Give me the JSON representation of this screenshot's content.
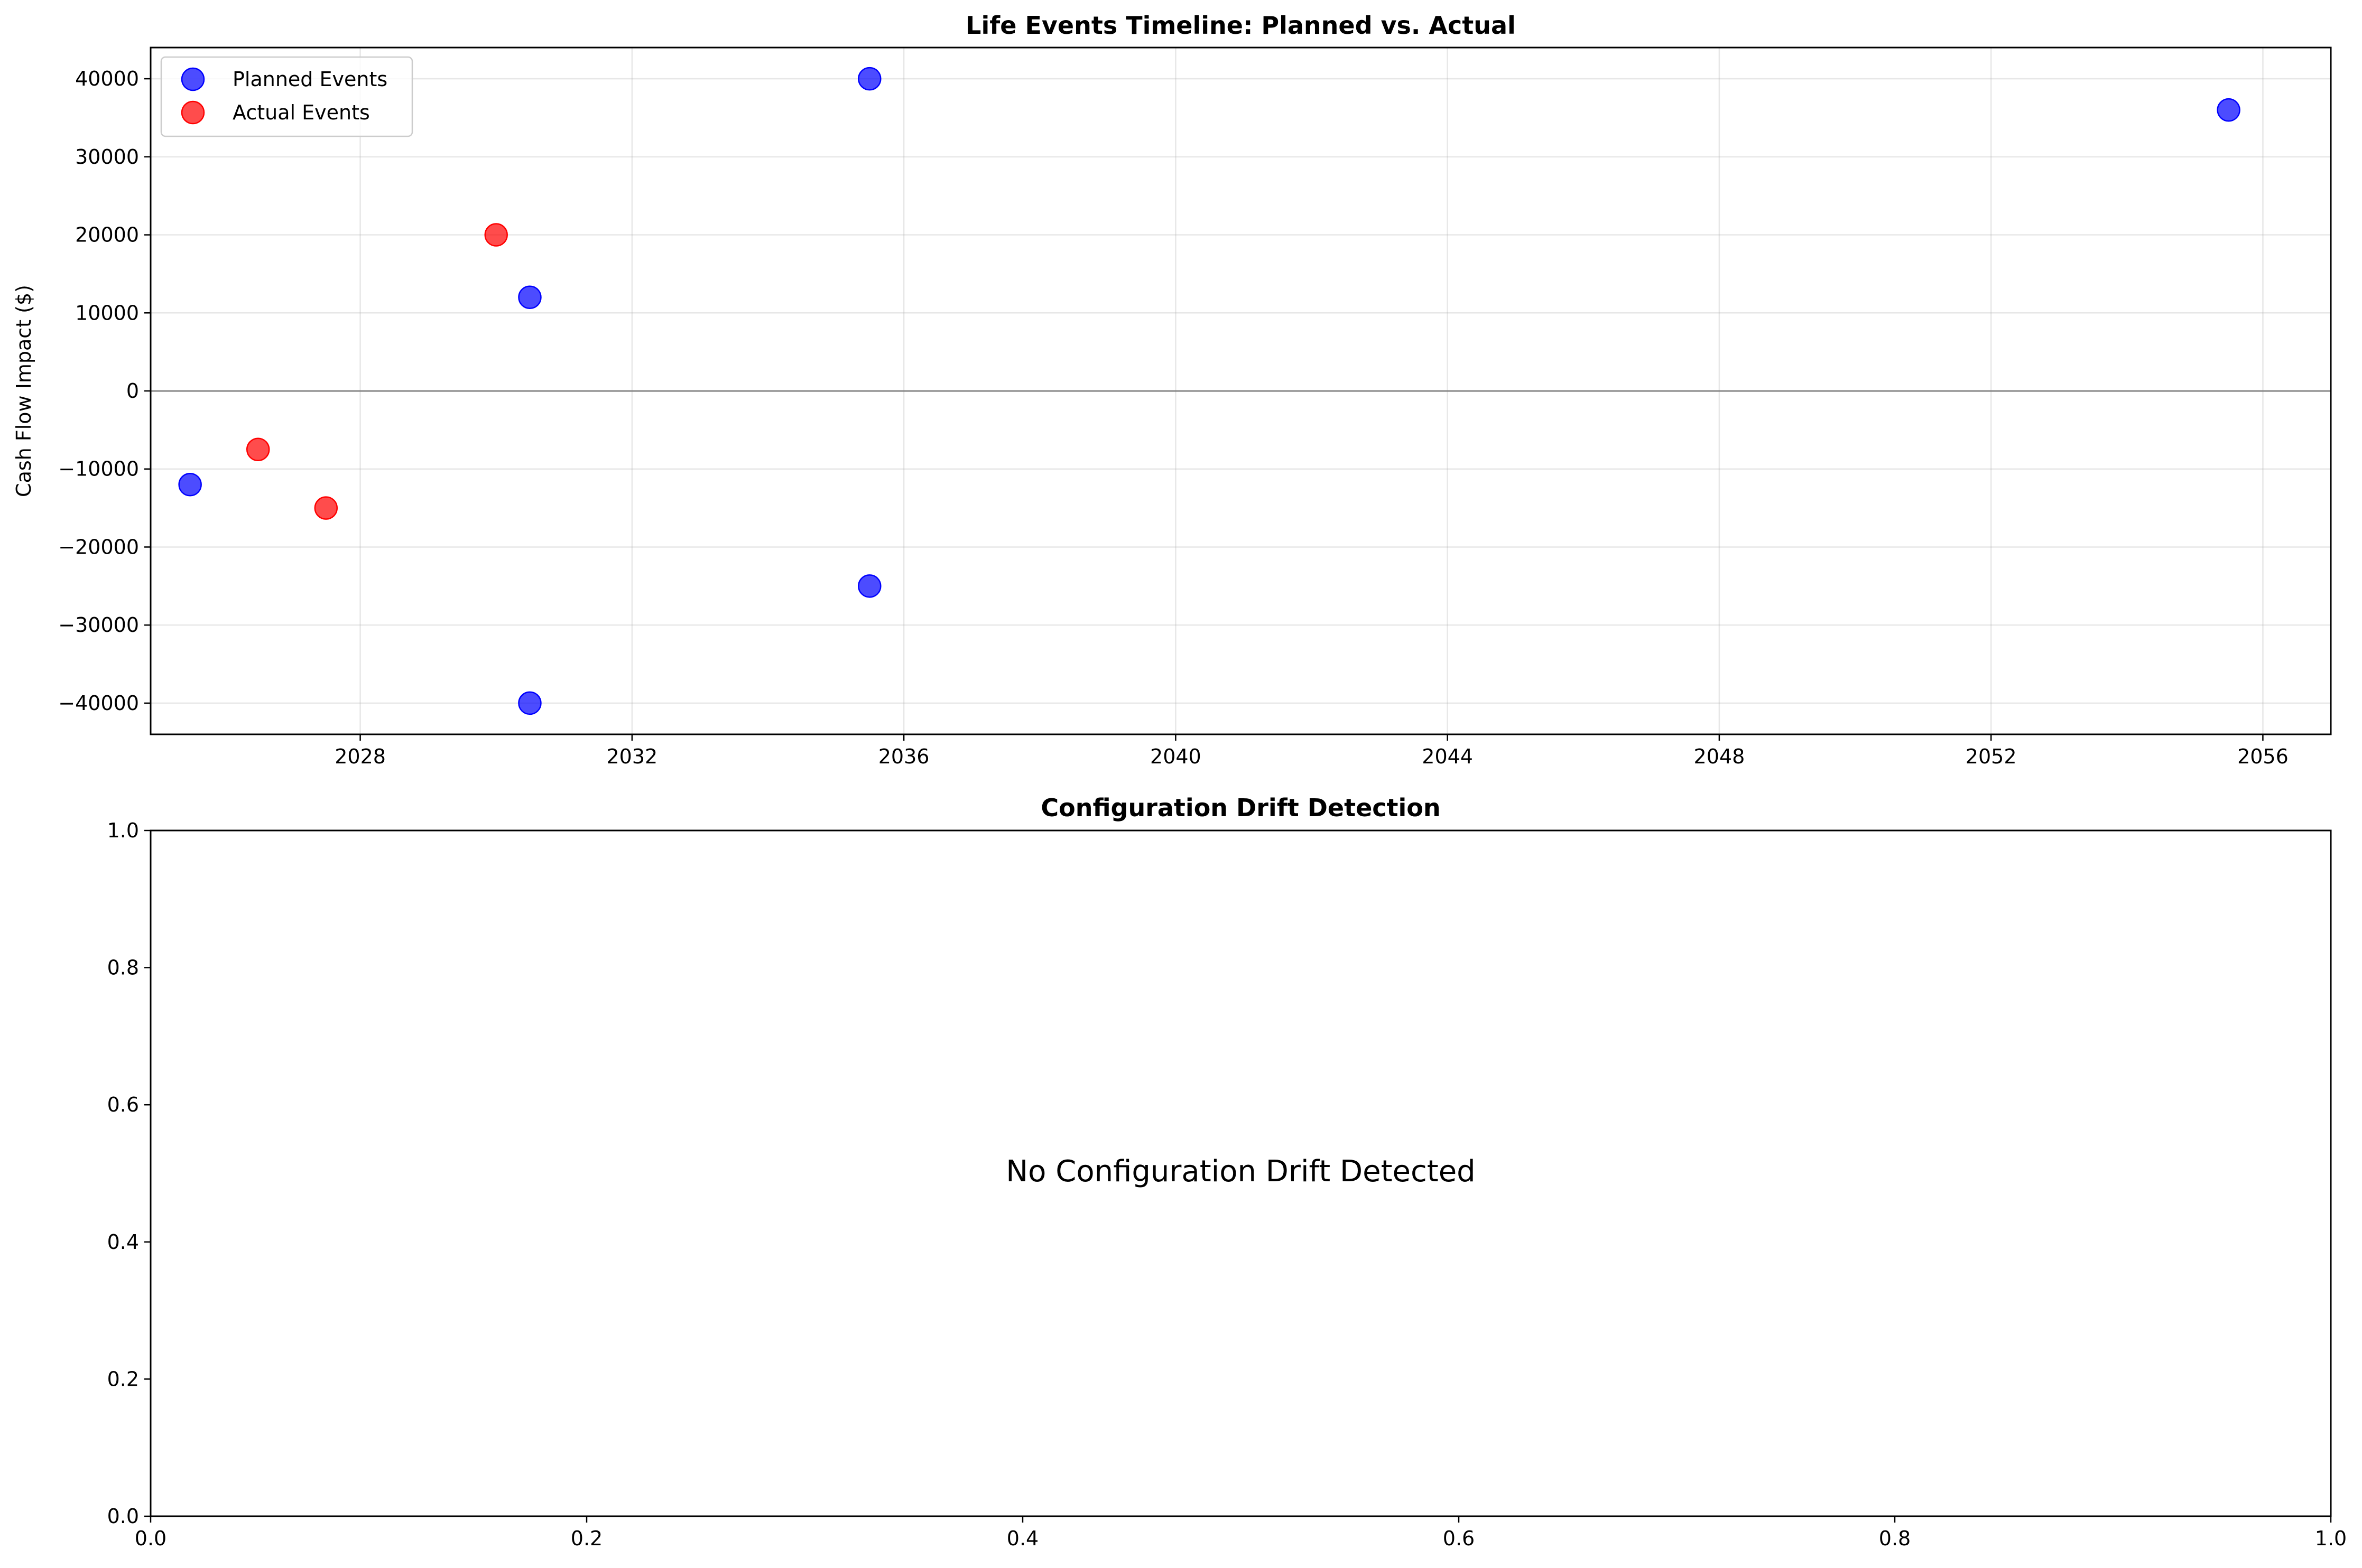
{
  "chart_data": [
    {
      "type": "scatter",
      "title": "Life Events Timeline: Planned vs. Actual",
      "xlabel": "",
      "ylabel": "Cash Flow Impact ($)",
      "xlim": [
        "2024-12-01",
        "2057-01-01"
      ],
      "ylim": [
        -44000,
        44000
      ],
      "x_ticks": [
        "2028",
        "2032",
        "2036",
        "2040",
        "2044",
        "2048",
        "2052",
        "2056"
      ],
      "y_ticks": [
        -40000,
        -30000,
        -20000,
        -10000,
        0,
        10000,
        20000,
        30000,
        40000
      ],
      "y_tick_labels": [
        "−40000",
        "−30000",
        "−20000",
        "−10000",
        "0",
        "10000",
        "20000",
        "30000",
        "40000"
      ],
      "grid": true,
      "zero_line": 0,
      "legend": "top-left",
      "series": [
        {
          "name": "Planned Events",
          "color": "#0000ff",
          "points": [
            {
              "x": "2025-07-01",
              "y": -12000
            },
            {
              "x": "2030-07-01",
              "y": 12000
            },
            {
              "x": "2030-07-01",
              "y": -40000
            },
            {
              "x": "2035-07-01",
              "y": 40000
            },
            {
              "x": "2035-07-01",
              "y": -25000
            },
            {
              "x": "2055-07-01",
              "y": 36000
            }
          ]
        },
        {
          "name": "Actual Events",
          "color": "#ff0000",
          "points": [
            {
              "x": "2026-07-01",
              "y": -7500
            },
            {
              "x": "2027-07-01",
              "y": -15000
            },
            {
              "x": "2030-01-01",
              "y": 20000
            }
          ]
        }
      ]
    },
    {
      "type": "scatter",
      "title": "Configuration Drift Detection",
      "xlabel": "",
      "ylabel": "",
      "xlim": [
        0,
        1
      ],
      "ylim": [
        0,
        1
      ],
      "x_ticks": [
        0.0,
        0.2,
        0.4,
        0.6,
        0.8,
        1.0
      ],
      "x_tick_labels": [
        "0.0",
        "0.2",
        "0.4",
        "0.6",
        "0.8",
        "1.0"
      ],
      "y_ticks": [
        0.0,
        0.2,
        0.4,
        0.6,
        0.8,
        1.0
      ],
      "y_tick_labels": [
        "0.0",
        "0.2",
        "0.4",
        "0.6",
        "0.8",
        "1.0"
      ],
      "grid": false,
      "annotation": "No Configuration Drift Detected",
      "series": []
    }
  ]
}
